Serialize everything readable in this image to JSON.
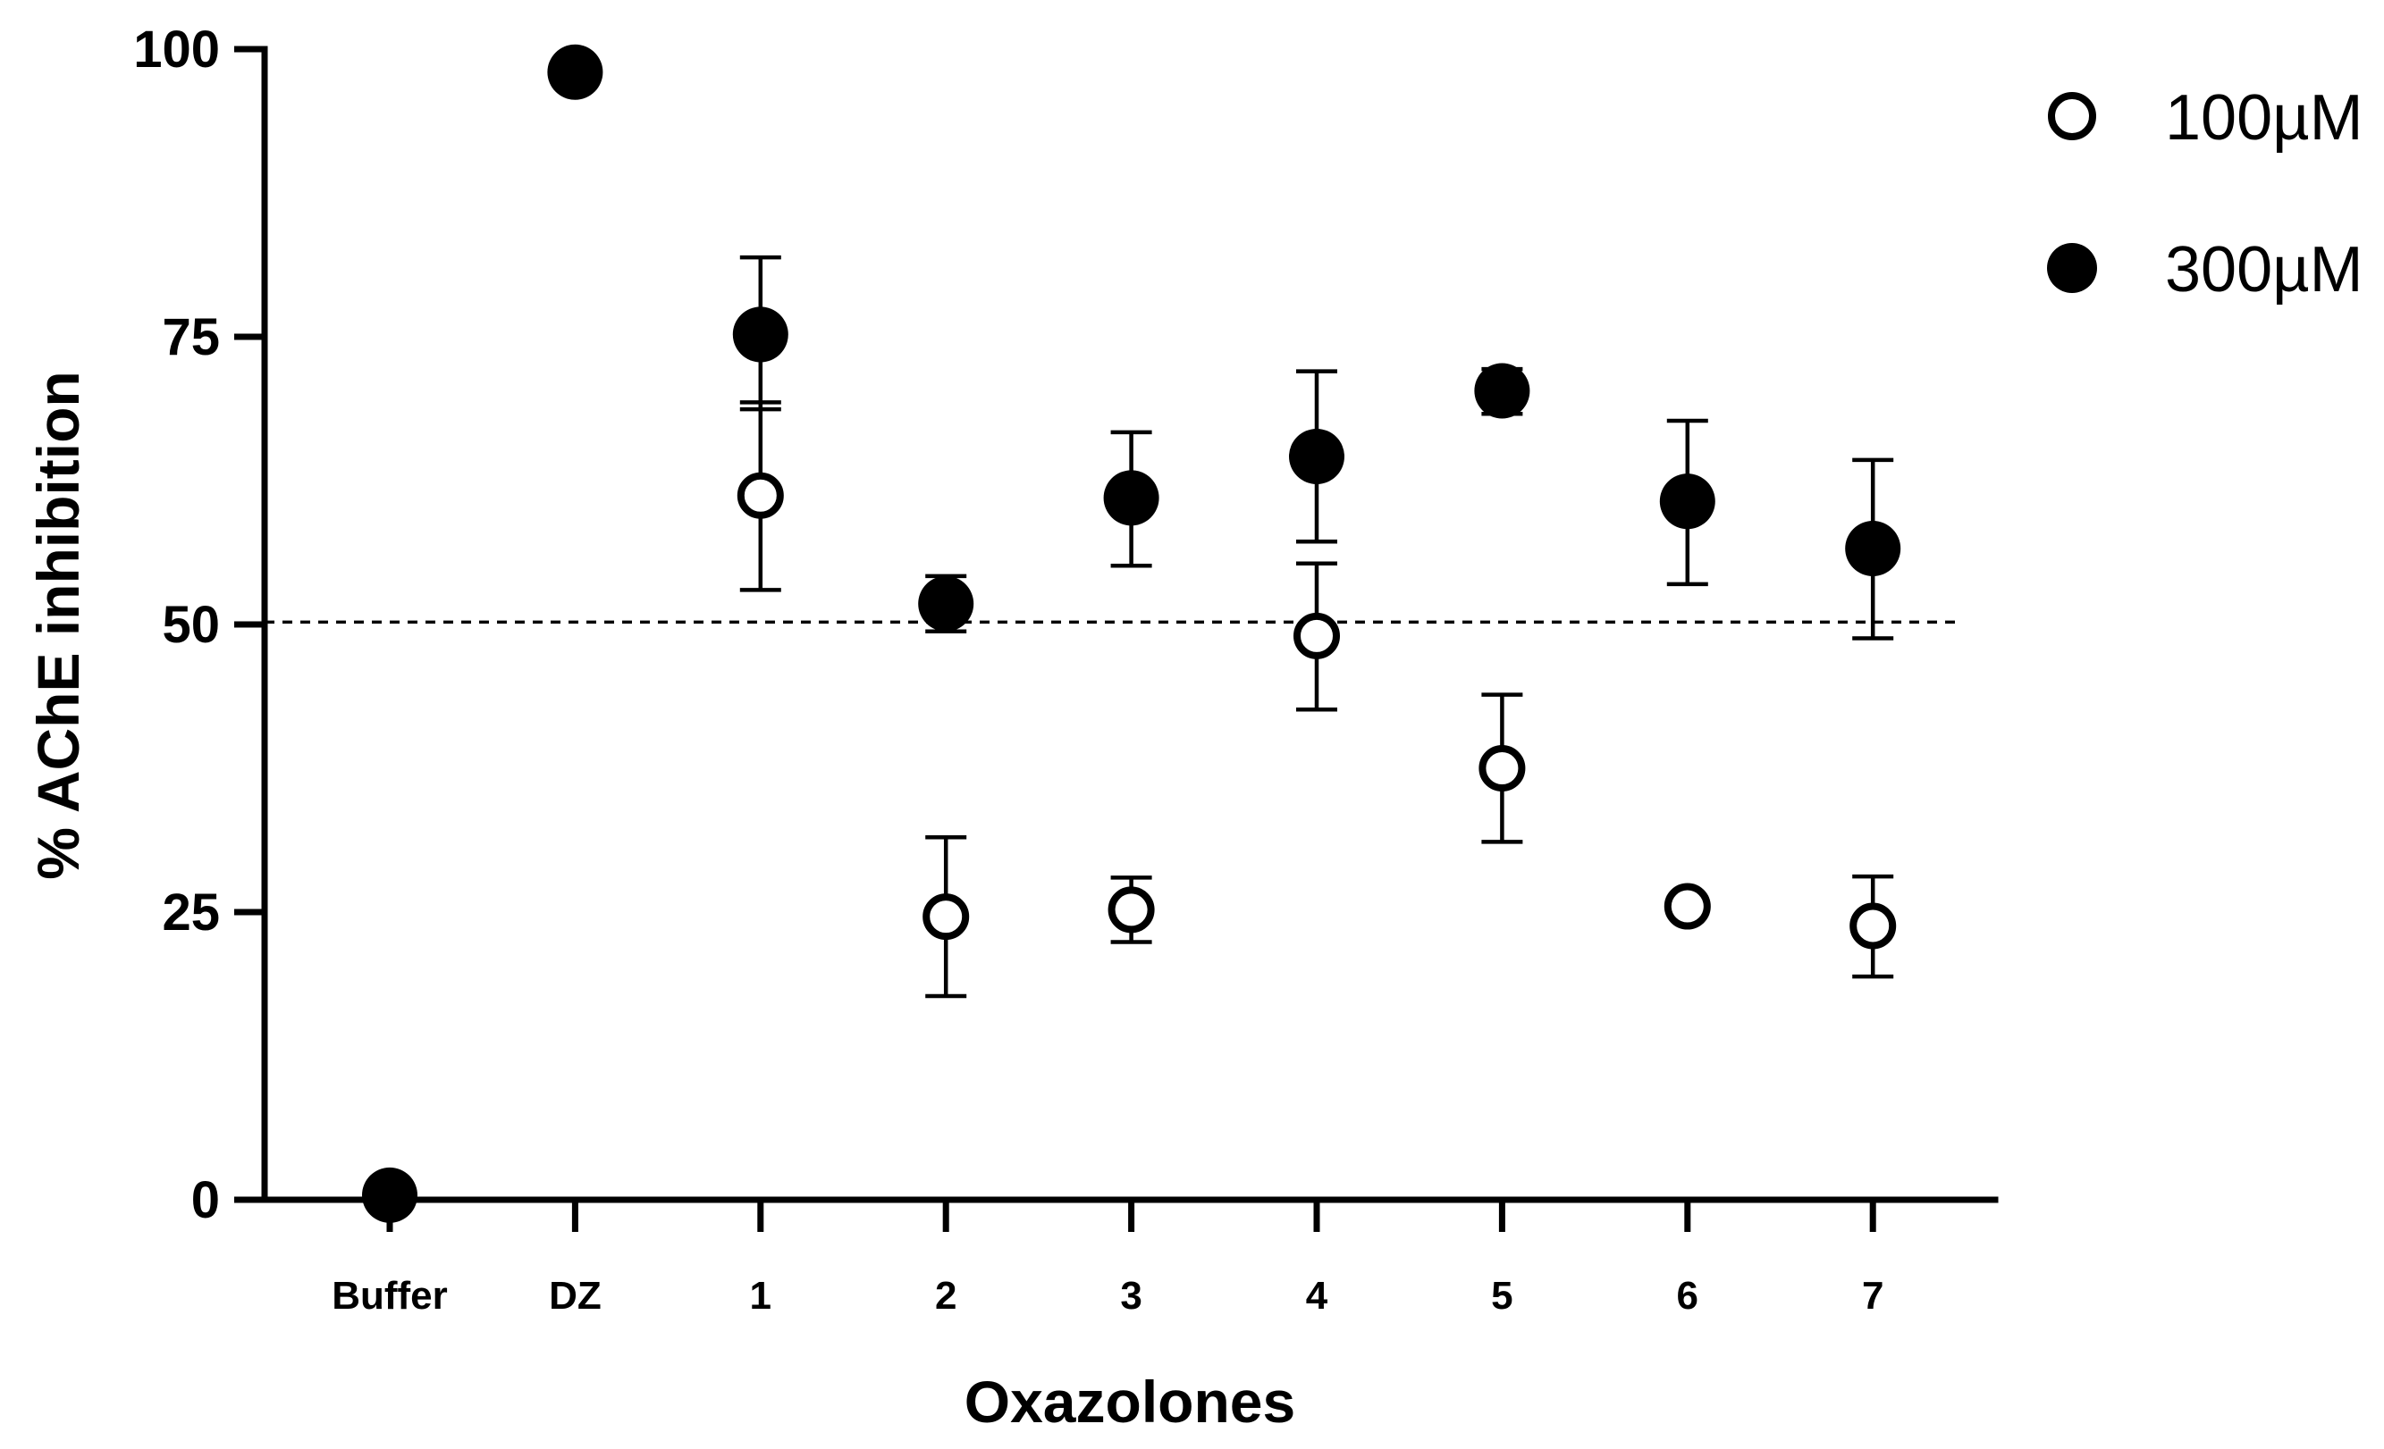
{
  "chart_data": {
    "type": "scatter",
    "title": "",
    "xlabel": "Oxazolones",
    "ylabel": "% AChE inhibition",
    "categories": [
      "Buffer",
      "DZ",
      "1",
      "2",
      "3",
      "4",
      "5",
      "6",
      "7"
    ],
    "ylim": [
      0,
      100
    ],
    "yticks": [
      0,
      25,
      50,
      75,
      100
    ],
    "reference_line": {
      "y": 50.2,
      "style": "dashed"
    },
    "legend_position": "top-right",
    "series": [
      {
        "name": "100µM",
        "marker": "open-circle",
        "points": [
          {
            "category": "1",
            "value": 61.2,
            "low": 53.0,
            "high": 69.3
          },
          {
            "category": "2",
            "value": 24.6,
            "low": 17.7,
            "high": 31.5
          },
          {
            "category": "3",
            "value": 25.2,
            "low": 22.4,
            "high": 28.0
          },
          {
            "category": "4",
            "value": 49.0,
            "low": 42.6,
            "high": 55.3
          },
          {
            "category": "5",
            "value": 37.5,
            "low": 31.1,
            "high": 43.9
          },
          {
            "category": "6",
            "value": 25.5,
            "low": null,
            "high": null
          },
          {
            "category": "7",
            "value": 23.8,
            "low": 19.4,
            "high": 28.1
          }
        ]
      },
      {
        "name": "300µM",
        "marker": "filled-circle",
        "points": [
          {
            "category": "Buffer",
            "value": 0.4,
            "low": null,
            "high": null
          },
          {
            "category": "DZ",
            "value": 98.0,
            "low": null,
            "high": null
          },
          {
            "category": "1",
            "value": 75.2,
            "low": 68.7,
            "high": 81.9
          },
          {
            "category": "2",
            "value": 51.8,
            "low": 49.4,
            "high": 54.2
          },
          {
            "category": "3",
            "value": 61.0,
            "low": 55.1,
            "high": 66.7
          },
          {
            "category": "4",
            "value": 64.6,
            "low": 57.2,
            "high": 72.0
          },
          {
            "category": "5",
            "value": 70.3,
            "low": 68.3,
            "high": 72.2
          },
          {
            "category": "6",
            "value": 60.7,
            "low": 53.5,
            "high": 67.7
          },
          {
            "category": "7",
            "value": 56.6,
            "low": 48.8,
            "high": 64.3
          }
        ]
      }
    ]
  }
}
